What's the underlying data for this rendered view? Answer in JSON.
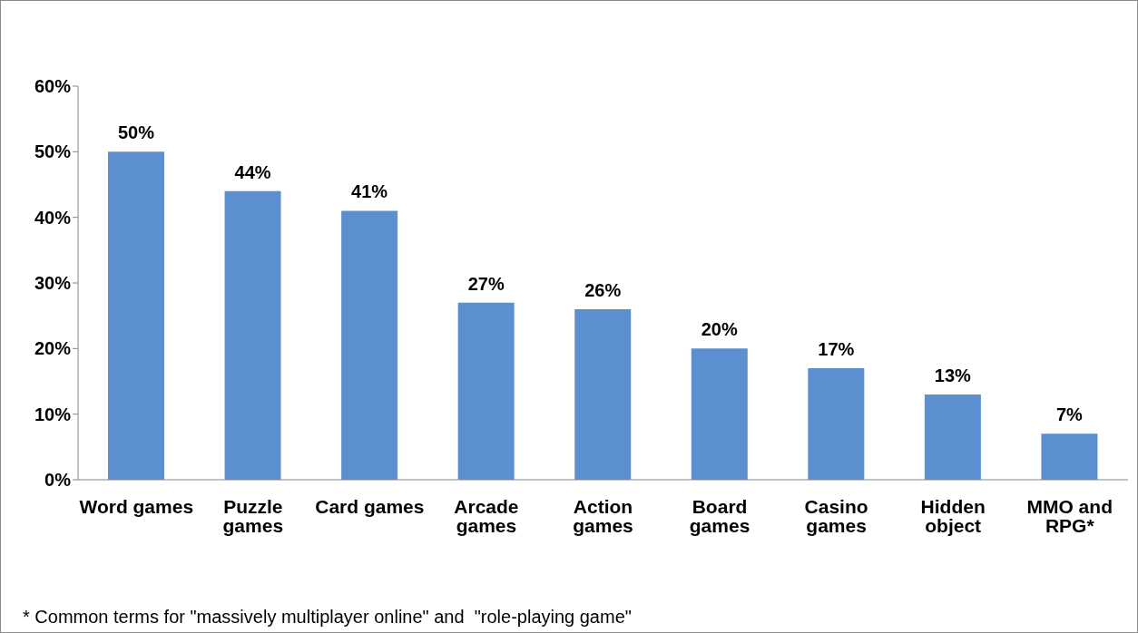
{
  "chart_data": {
    "type": "bar",
    "categories": [
      "Word games",
      "Puzzle games",
      "Card games",
      "Arcade games",
      "Action games",
      "Board games",
      "Casino games",
      "Hidden object",
      "MMO and RPG*"
    ],
    "values": [
      50,
      44,
      41,
      27,
      26,
      20,
      17,
      13,
      7
    ],
    "value_labels": [
      "50%",
      "44%",
      "41%",
      "27%",
      "26%",
      "20%",
      "17%",
      "13%",
      "7%"
    ],
    "color": "#5b8fcf",
    "ylim": [
      0,
      60
    ],
    "yticks": [
      {
        "value": 0,
        "label": "0%"
      },
      {
        "value": 10,
        "label": "10%"
      },
      {
        "value": 20,
        "label": "20%"
      },
      {
        "value": 30,
        "label": "30%"
      },
      {
        "value": 40,
        "label": "40%"
      },
      {
        "value": 50,
        "label": "50%"
      },
      {
        "value": 60,
        "label": "60%"
      }
    ],
    "grid": false,
    "legend": false,
    "annotations": [
      "* Common terms for \"massively multiplayer online\" and  \"role-playing game\""
    ]
  }
}
